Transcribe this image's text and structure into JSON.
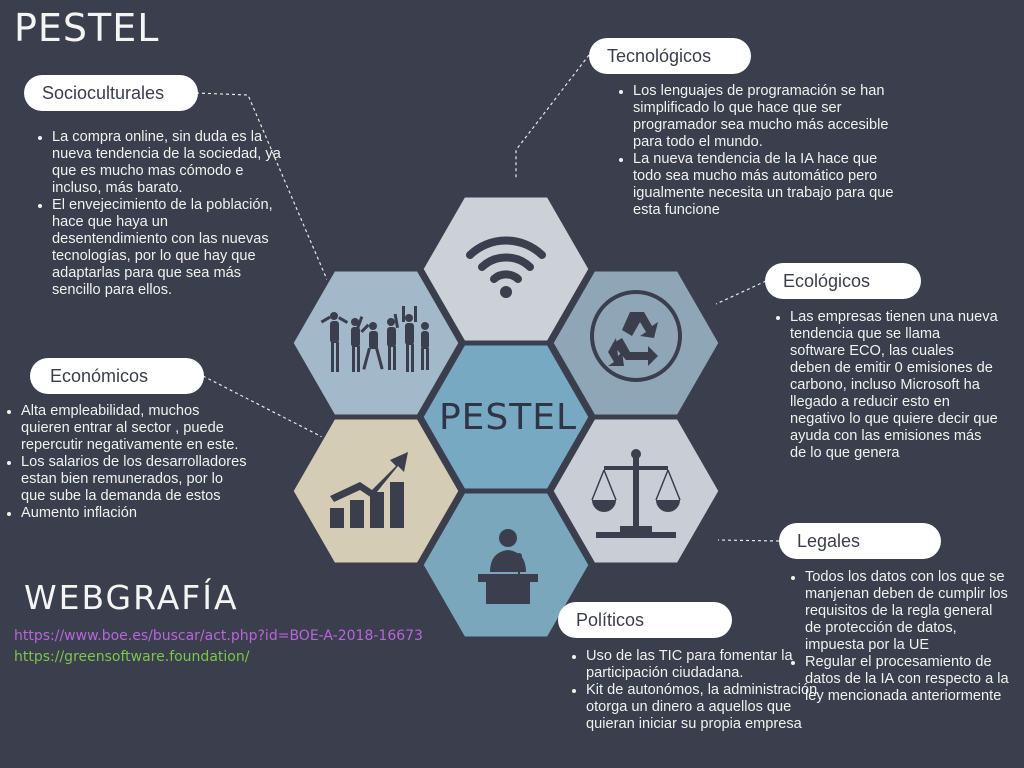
{
  "title": "PESTEL",
  "center_label": "PESTEL",
  "colors": {
    "background": "#3a3e4d",
    "hex_tech": "#ccd0d7",
    "hex_socio": "#a3b8c8",
    "hex_eco": "#8ea6b6",
    "hex_center": "#78a9c2",
    "hex_econ": "#d5ccb6",
    "hex_legal": "#c8cdd6",
    "hex_pol": "#7ba7bd",
    "icon_dark": "#3a3e4d",
    "link_purple": "#b667d9",
    "link_green": "#7cc64a"
  },
  "sections": {
    "socio": {
      "label": "Socioculturales",
      "icon": "people-celebrating-icon",
      "items": [
        "La compra online, sin duda es la nueva tendencia de la sociedad, ya que es mucho mas cómodo e incluso, más barato.",
        "El envejecimiento de la población, hace que haya un desentendimiento con las nuevas tecnologías, por lo que hay que adaptarlas para que sea más sencillo para ellos."
      ]
    },
    "tech": {
      "label": "Tecnológicos",
      "icon": "wifi-icon",
      "items": [
        "Los lenguajes de programación se han simplificado lo que hace que ser programador sea mucho más accesible para todo el mundo.",
        "La nueva tendencia de la IA hace que todo sea mucho más automático pero igualmente necesita un trabajo para que esta funcione"
      ]
    },
    "eco": {
      "label": "Ecológicos",
      "icon": "recycle-icon",
      "items": [
        "Las empresas tienen una nueva tendencia que se llama software ECO, las cuales deben de emitir 0 emisiones de carbono, incluso Microsoft ha llegado a reducir esto en negativo lo que quiere decir que ayuda con las emisiones más de lo que genera"
      ]
    },
    "econ": {
      "label": "Económicos",
      "icon": "growth-chart-icon",
      "items": [
        "Alta empleabilidad, muchos quieren entrar al sector , puede repercutir negativamente en este.",
        "Los salarios de los desarrolladores estan bien remunerados, por lo que sube la demanda de estos",
        "Aumento inflación"
      ]
    },
    "legal": {
      "label": "Legales",
      "icon": "scales-icon",
      "items": [
        "Todos los datos con los que se manjenan deben de cumplir los requisitos de la regla general de protección de datos, impuesta por la UE",
        "Regular el procesamiento de datos de la IA con respecto a la ley mencionada anteriormente"
      ]
    },
    "pol": {
      "label": "Políticos",
      "icon": "speaker-podium-icon",
      "items": [
        "Uso de las TIC para fomentar la participación ciudadana.",
        "Kit de autonómos, la administración otorga un dinero a aquellos que quieran iniciar su propia empresa"
      ]
    }
  },
  "webgrafia": {
    "heading": "WEBGRAFÍA",
    "links": [
      "https://www.boe.es/buscar/act.php?id=BOE-A-2018-16673",
      "https://greensoftware.foundation/"
    ]
  }
}
